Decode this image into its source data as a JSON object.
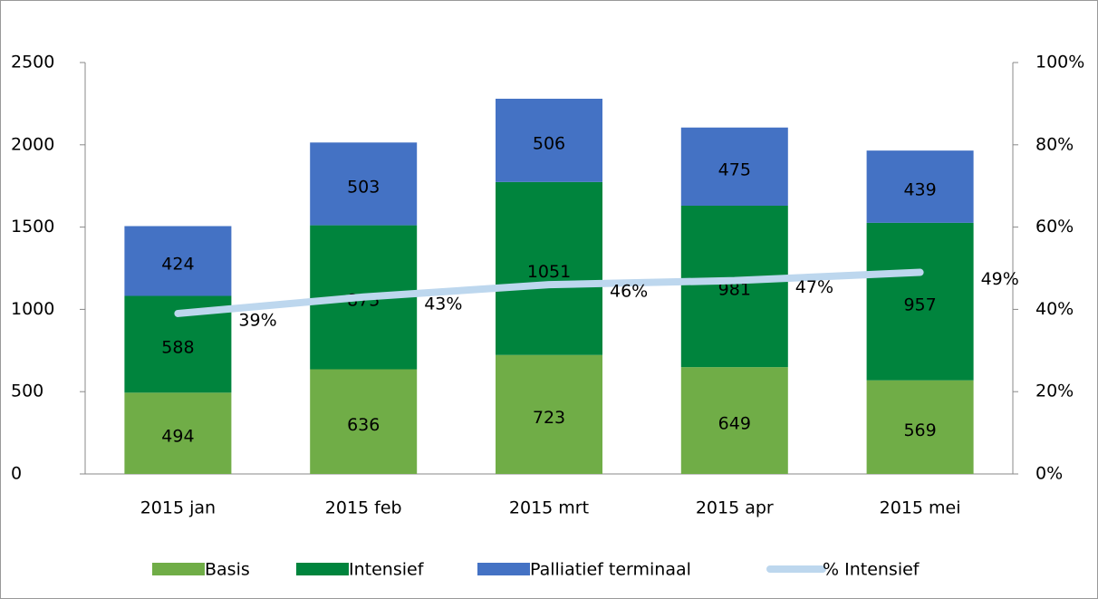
{
  "chart_data": {
    "type": "bar",
    "stacked": true,
    "categories": [
      "2015 jan",
      "2015 feb",
      "2015 mrt",
      "2015 apr",
      "2015 mei"
    ],
    "series": [
      {
        "name": "Basis",
        "color": "#70ad47",
        "values": [
          494,
          636,
          723,
          649,
          569
        ]
      },
      {
        "name": "Intensief",
        "color": "#00843d",
        "values": [
          588,
          875,
          1051,
          981,
          957
        ]
      },
      {
        "name": "Palliatief terminaal",
        "color": "#4472c4",
        "values": [
          424,
          503,
          506,
          475,
          439
        ]
      },
      {
        "name": "% Intensief",
        "type": "line",
        "axis": "y2",
        "color": "#bdd7ee",
        "values": [
          39,
          43,
          46,
          47,
          49
        ],
        "value_labels": [
          "39%",
          "43%",
          "46%",
          "47%",
          "49%"
        ]
      }
    ],
    "ylim": [
      0,
      2500
    ],
    "yticks": [
      0,
      500,
      1000,
      1500,
      2000,
      2500
    ],
    "y2lim": [
      0,
      100
    ],
    "y2ticks": [
      {
        "value": 0,
        "label": "0%"
      },
      {
        "value": 20,
        "label": "20%"
      },
      {
        "value": 40,
        "label": "40%"
      },
      {
        "value": 60,
        "label": "60%"
      },
      {
        "value": 80,
        "label": "80%"
      },
      {
        "value": 100,
        "label": "100%"
      }
    ],
    "legend": "bottom"
  }
}
